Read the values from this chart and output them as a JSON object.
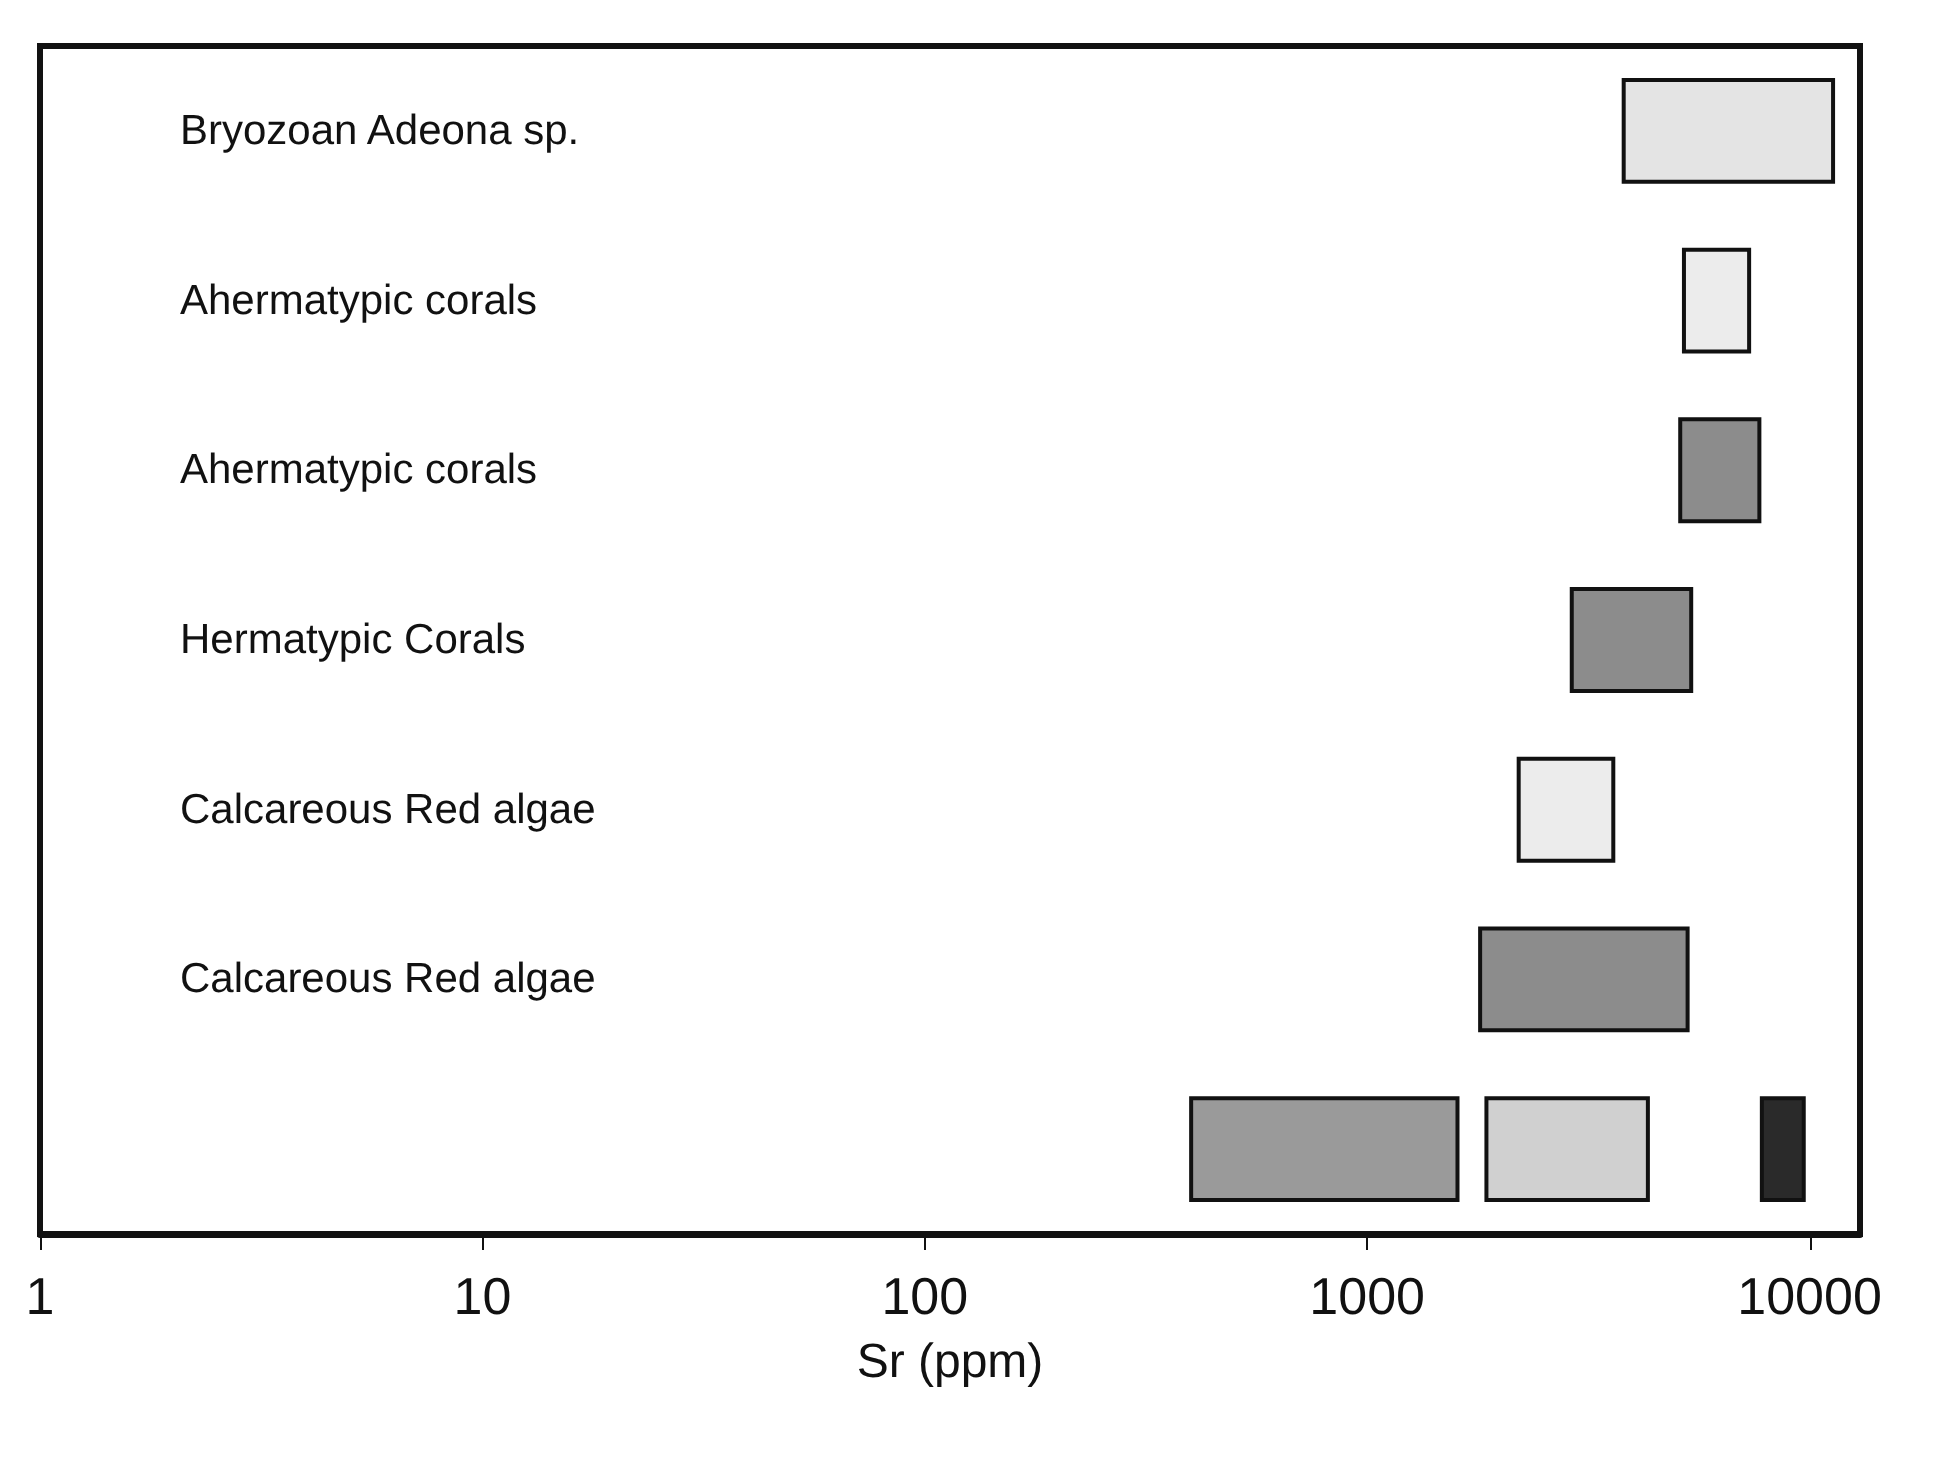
{
  "chart_data": {
    "type": "bar",
    "orientation": "horizontal",
    "log": "x",
    "xlabel": "Sr (ppm)",
    "categories": [
      "Bryozoan Adeona sp.",
      "Ahermatypic corals",
      "Ahermatypic corals",
      "Hermatypic Corals",
      "Calcareous Red algae",
      "Calcareous Red algae",
      null
    ],
    "series": [
      {
        "colors": [
          "#e4e4e4",
          "#ececec",
          "#8c8c8c",
          "#8c8c8c",
          "#ececec",
          "#8c8c8c",
          "#9a9a9a"
        ],
        "base": [
          3800,
          5200,
          5100,
          2900,
          2200,
          1800,
          400
        ],
        "values": [
          7500,
          2100,
          2600,
          2500,
          1400,
          3500,
          1200
        ]
      },
      {
        "color": "#d0d0d0",
        "base": [
          null,
          null,
          null,
          null,
          null,
          null,
          1860
        ],
        "values": [
          null,
          null,
          null,
          null,
          null,
          null,
          2450
        ]
      },
      {
        "color": "#2a2a2a",
        "base": [
          null,
          null,
          null,
          null,
          null,
          null,
          7800
        ],
        "values": [
          null,
          null,
          null,
          null,
          null,
          null,
          1900
        ]
      }
    ],
    "xlim": [
      1,
      13000
    ],
    "xticks": [
      1,
      10,
      100,
      1000,
      10000
    ],
    "grid": false
  }
}
